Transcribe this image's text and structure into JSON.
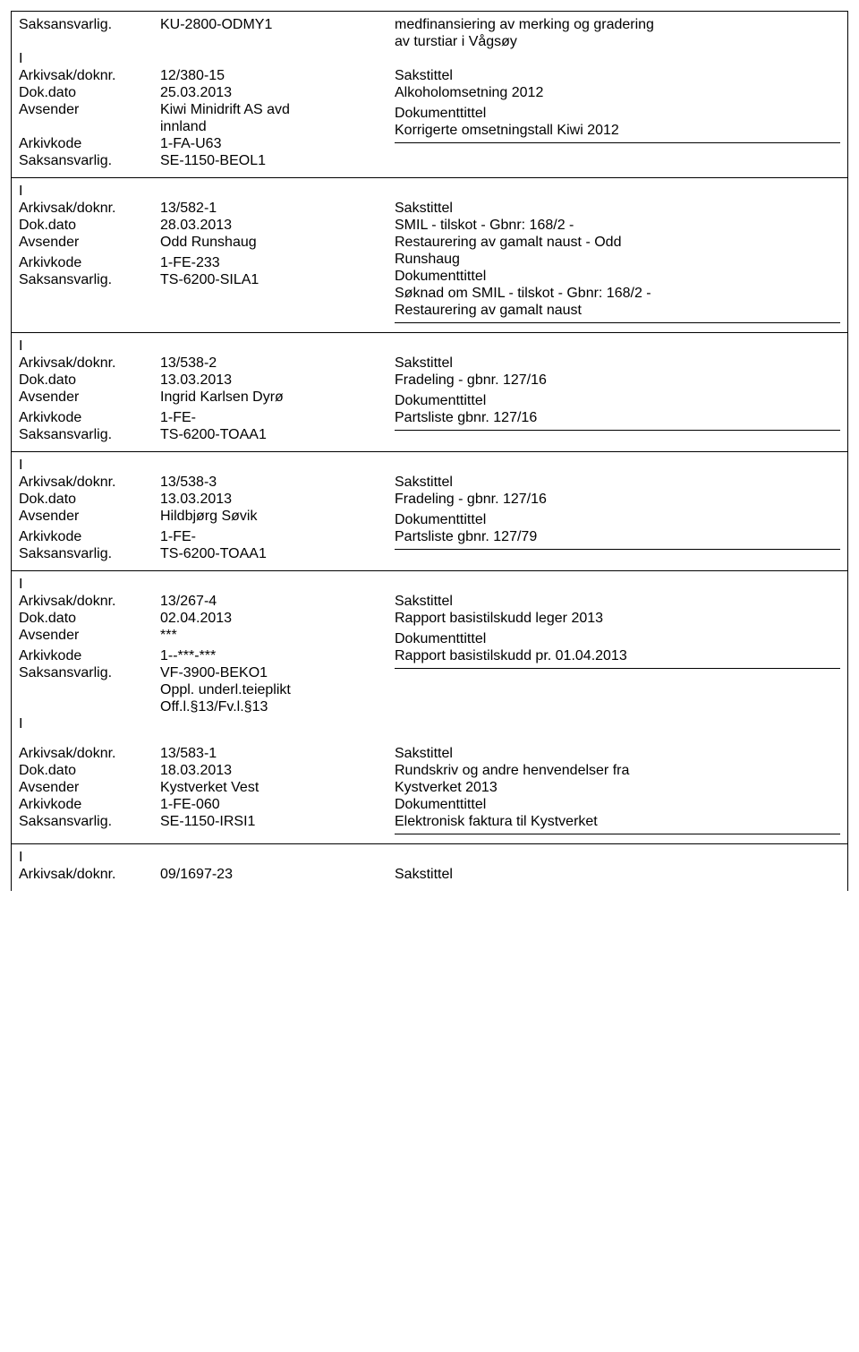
{
  "labels": {
    "saksansvarlig": "Saksansvarlig.",
    "arkivsak": "Arkivsak/doknr.",
    "dokdato": "Dok.dato",
    "avsender": "Avsender",
    "arkivkode": "Arkivkode",
    "sakstittel": "Sakstittel",
    "dokumenttittel": "Dokumenttittel",
    "i_marker": "I"
  },
  "records": [
    {
      "pre_sak": "KU-2800-ODMY1",
      "pre_desc": [
        "medfinansiering av merking og gradering",
        "av turstiar i Vågsøy"
      ],
      "arkivsak": "12/380-15",
      "dokdato": "25.03.2013",
      "avsender_lines": [
        "Kiwi Minidrift AS avd",
        "innland"
      ],
      "arkivkode": "1-FA-U63",
      "saksansvarlig": "SE-1150-BEOL1",
      "sakstittel_lines": [
        "Alkoholomsetning 2012"
      ],
      "doktittel_lines": [
        "Korrigerte omsetningstall Kiwi 2012"
      ],
      "right_after_rule_blank": true
    },
    {
      "arkivsak": "13/582-1",
      "dokdato": "28.03.2013",
      "avsender_lines": [
        "Odd Runshaug"
      ],
      "arkivkode": "1-FE-233",
      "saksansvarlig": "TS-6200-SILA1",
      "sakstittel_lines": [
        "SMIL - tilskot - Gbnr: 168/2 -",
        "Restaurering av gamalt naust - Odd",
        "Runshaug"
      ],
      "doktittel_lines": [
        "Søknad om SMIL - tilskot - Gbnr: 168/2 -",
        "Restaurering av gamalt naust"
      ]
    },
    {
      "arkivsak": "13/538-2",
      "dokdato": "13.03.2013",
      "avsender_lines": [
        "Ingrid Karlsen Dyrø"
      ],
      "arkivkode": "1-FE-",
      "saksansvarlig": "TS-6200-TOAA1",
      "sakstittel_lines": [
        "Fradeling - gbnr. 127/16"
      ],
      "doktittel_lines": [
        "Partsliste gbnr. 127/16"
      ]
    },
    {
      "arkivsak": "13/538-3",
      "dokdato": "13.03.2013",
      "avsender_lines": [
        "Hildbjørg Søvik"
      ],
      "arkivkode": "1-FE-",
      "saksansvarlig": "TS-6200-TOAA1",
      "sakstittel_lines": [
        "Fradeling - gbnr. 127/16"
      ],
      "doktittel_lines": [
        "Partsliste gbnr. 127/79"
      ]
    },
    {
      "arkivsak": "13/267-4",
      "dokdato": "02.04.2013",
      "avsender_lines": [
        "***"
      ],
      "arkivkode": "1--***-***",
      "saksansvarlig": "VF-3900-BEKO1",
      "extra_left_lines": [
        "Oppl. underl.teieplikt",
        "Off.l.§13/Fv.l.§13"
      ],
      "sakstittel_lines": [
        "Rapport basistilskudd leger 2013"
      ],
      "doktittel_lines": [
        "Rapport basistilskudd pr. 01.04.2013"
      ],
      "no_bottom": true
    },
    {
      "arkivsak": "13/583-1",
      "dokdato": "18.03.2013",
      "avsender_lines": [
        "Kystverket Vest"
      ],
      "arkivkode": "1-FE-060",
      "saksansvarlig": "SE-1150-IRSI1",
      "sakstittel_lines": [
        "Rundskriv og andre henvendelser fra",
        "Kystverket 2013"
      ],
      "doktittel_lines": [
        "Elektronisk faktura til Kystverket"
      ]
    },
    {
      "arkivsak": "09/1697-23",
      "only_top": true
    }
  ]
}
